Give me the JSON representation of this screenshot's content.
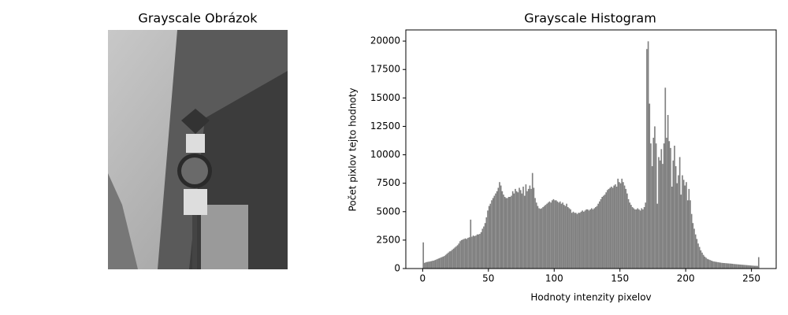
{
  "chart_data": [
    {
      "type": "image",
      "title": "Grayscale Obrázok"
    },
    {
      "type": "histogram",
      "title": "Grayscale Histogram",
      "x_label": "Hodnoty intenzity pixelov",
      "y_label": "Počet pixlov tejto hodnoty",
      "color": "#808080",
      "bins": [
        0,
        1,
        2,
        3,
        4,
        5,
        6,
        7,
        8,
        9,
        10,
        11,
        12,
        13,
        14,
        15,
        16,
        17,
        18,
        19,
        20,
        21,
        22,
        23,
        24,
        25,
        26,
        27,
        28,
        29,
        30,
        31,
        32,
        33,
        34,
        35,
        36,
        37,
        38,
        39,
        40,
        41,
        42,
        43,
        44,
        45,
        46,
        47,
        48,
        49,
        50,
        51,
        52,
        53,
        54,
        55,
        56,
        57,
        58,
        59,
        60,
        61,
        62,
        63,
        64,
        65,
        66,
        67,
        68,
        69,
        70,
        71,
        72,
        73,
        74,
        75,
        76,
        77,
        78,
        79,
        80,
        81,
        82,
        83,
        84,
        85,
        86,
        87,
        88,
        89,
        90,
        91,
        92,
        93,
        94,
        95,
        96,
        97,
        98,
        99,
        100,
        101,
        102,
        103,
        104,
        105,
        106,
        107,
        108,
        109,
        110,
        111,
        112,
        113,
        114,
        115,
        116,
        117,
        118,
        119,
        120,
        121,
        122,
        123,
        124,
        125,
        126,
        127,
        128,
        129,
        130,
        131,
        132,
        133,
        134,
        135,
        136,
        137,
        138,
        139,
        140,
        141,
        142,
        143,
        144,
        145,
        146,
        147,
        148,
        149,
        150,
        151,
        152,
        153,
        154,
        155,
        156,
        157,
        158,
        159,
        160,
        161,
        162,
        163,
        164,
        165,
        166,
        167,
        168,
        169,
        170,
        171,
        172,
        173,
        174,
        175,
        176,
        177,
        178,
        179,
        180,
        181,
        182,
        183,
        184,
        185,
        186,
        187,
        188,
        189,
        190,
        191,
        192,
        193,
        194,
        195,
        196,
        197,
        198,
        199,
        200,
        201,
        202,
        203,
        204,
        205,
        206,
        207,
        208,
        209,
        210,
        211,
        212,
        213,
        214,
        215,
        216,
        217,
        218,
        219,
        220,
        221,
        222,
        223,
        224,
        225,
        226,
        227,
        228,
        229,
        230,
        231,
        232,
        233,
        234,
        235,
        236,
        237,
        238,
        239,
        240,
        241,
        242,
        243,
        244,
        245,
        246,
        247,
        248,
        249,
        250,
        251,
        252,
        253,
        254,
        255,
        256
      ],
      "values": [
        2300,
        500,
        550,
        580,
        600,
        620,
        650,
        680,
        700,
        750,
        800,
        850,
        900,
        950,
        1000,
        1050,
        1100,
        1200,
        1300,
        1400,
        1500,
        1550,
        1650,
        1750,
        1850,
        1950,
        2050,
        2200,
        2400,
        2500,
        2550,
        2600,
        2650,
        2600,
        2700,
        2750,
        4300,
        2800,
        2900,
        2850,
        2900,
        3000,
        3000,
        3050,
        3200,
        3500,
        3700,
        4000,
        4500,
        5100,
        5500,
        5700,
        6000,
        6200,
        6400,
        6600,
        6800,
        7100,
        7600,
        7300,
        6800,
        6500,
        6300,
        6200,
        6200,
        6300,
        6300,
        6400,
        6800,
        6600,
        7000,
        6800,
        6700,
        7100,
        6900,
        6600,
        7200,
        6400,
        7400,
        6800,
        7000,
        7300,
        7000,
        8400,
        7100,
        6200,
        5800,
        5500,
        5300,
        5250,
        5300,
        5400,
        5500,
        5600,
        5700,
        5800,
        5900,
        5800,
        6000,
        6100,
        6000,
        6000,
        5900,
        5800,
        5900,
        5700,
        5800,
        5600,
        5500,
        5700,
        5400,
        5300,
        5200,
        4900,
        5000,
        4900,
        4900,
        4800,
        4900,
        4900,
        5000,
        5100,
        5000,
        5100,
        5200,
        5200,
        5100,
        5200,
        5300,
        5200,
        5300,
        5400,
        5500,
        5700,
        5900,
        6100,
        6300,
        6400,
        6500,
        6700,
        6900,
        7000,
        7100,
        7200,
        7100,
        7300,
        7400,
        7200,
        7900,
        7600,
        7500,
        7900,
        7600,
        7300,
        7000,
        6600,
        6100,
        5800,
        5600,
        5400,
        5300,
        5200,
        5200,
        5300,
        5200,
        5100,
        5300,
        5200,
        5400,
        5800,
        19300,
        19980,
        14500,
        11000,
        9000,
        11500,
        12500,
        11000,
        5700,
        9800,
        9500,
        10500,
        9200,
        11000,
        15900,
        11500,
        13500,
        11200,
        10600,
        7200,
        9500,
        10800,
        9000,
        7500,
        8200,
        9800,
        6500,
        8200,
        7800,
        7300,
        7600,
        6000,
        7000,
        6000,
        4800,
        4000,
        3500,
        3000,
        2600,
        2200,
        1900,
        1600,
        1400,
        1200,
        1050,
        950,
        850,
        800,
        750,
        700,
        650,
        620,
        600,
        580,
        560,
        540,
        520,
        500,
        490,
        480,
        470,
        460,
        450,
        440,
        430,
        420,
        400,
        390,
        380,
        370,
        360,
        350,
        340,
        330,
        320,
        310,
        300,
        290,
        280,
        270,
        260,
        250,
        240,
        240,
        230,
        1000
      ],
      "xlim": [
        -12.8,
        268.8
      ],
      "ylim": [
        0,
        20979
      ],
      "xticks": [
        0,
        50,
        100,
        150,
        200,
        250
      ],
      "yticks": [
        0,
        2500,
        5000,
        7500,
        10000,
        12500,
        15000,
        17500,
        20000
      ],
      "grid": false
    }
  ]
}
